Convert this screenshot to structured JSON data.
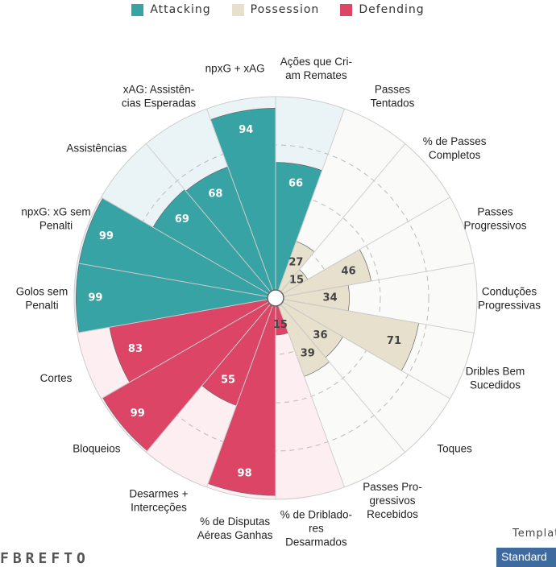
{
  "legend": [
    {
      "label": "Attacking",
      "color": "#37a3a5"
    },
    {
      "label": "Possession",
      "color": "#e6e0cd"
    },
    {
      "label": "Defending",
      "color": "#dc4566"
    }
  ],
  "chart_data": {
    "type": "pizza",
    "value_range": [
      0,
      100
    ],
    "slices": [
      {
        "label": [
          "Ações que Cri-",
          "am Remates"
        ],
        "value": 66,
        "group": "Attacking"
      },
      {
        "label": [
          "Passes",
          "Tentados"
        ],
        "value": 27,
        "group": "Possession"
      },
      {
        "label": [
          "% de Passes",
          "Completos"
        ],
        "value": 15,
        "group": "Possession"
      },
      {
        "label": [
          "Passes",
          "Progressivos"
        ],
        "value": 46,
        "group": "Possession"
      },
      {
        "label": [
          "Conduções",
          "Progressivas"
        ],
        "value": 34,
        "group": "Possession"
      },
      {
        "label": [
          "Dribles Bem",
          "Sucedidos"
        ],
        "value": 71,
        "group": "Possession"
      },
      {
        "label": [
          "Toques"
        ],
        "value": 36,
        "group": "Possession"
      },
      {
        "label": [
          "Passes Pro-",
          "gressivos",
          "Recebidos"
        ],
        "value": 39,
        "group": "Possession"
      },
      {
        "label": [
          "% de Driblado-",
          "res",
          "Desarmados"
        ],
        "value": 15,
        "group": "Defending"
      },
      {
        "label": [
          "% de Disputas",
          "Aéreas Ganhas"
        ],
        "value": 98,
        "group": "Defending"
      },
      {
        "label": [
          "Desarmes +",
          "Interceções"
        ],
        "value": 55,
        "group": "Defending"
      },
      {
        "label": [
          "Bloqueios"
        ],
        "value": 99,
        "group": "Defending"
      },
      {
        "label": [
          "Cortes"
        ],
        "value": 83,
        "group": "Defending"
      },
      {
        "label": [
          "Golos sem",
          "Penalti"
        ],
        "value": 99,
        "group": "Attacking"
      },
      {
        "label": [
          "npxG: xG sem",
          "Penalti"
        ],
        "value": 99,
        "group": "Attacking"
      },
      {
        "label": [
          "Assistências"
        ],
        "value": 69,
        "group": "Attacking"
      },
      {
        "label": [
          "xAG: Assistên-",
          "cias Esperadas"
        ],
        "value": 68,
        "group": "Attacking"
      },
      {
        "label": [
          "npxG + xAG"
        ],
        "value": 94,
        "group": "Attacking"
      }
    ],
    "group_colors": {
      "Attacking": {
        "fill": "#37a3a5",
        "bg": "#eaf4f7",
        "text": "#ffffff"
      },
      "Possession": {
        "fill": "#e6e0cd",
        "bg": "#fafaf8",
        "text": "#444444"
      },
      "Defending": {
        "fill": "#dc4566",
        "bg": "#fdeef1",
        "text": "#ffffff"
      }
    },
    "grid": true,
    "legend_position": "top-center"
  },
  "footer": {
    "template_label": "Templat",
    "template_value": "Standard",
    "brand": "FBREFTO"
  }
}
